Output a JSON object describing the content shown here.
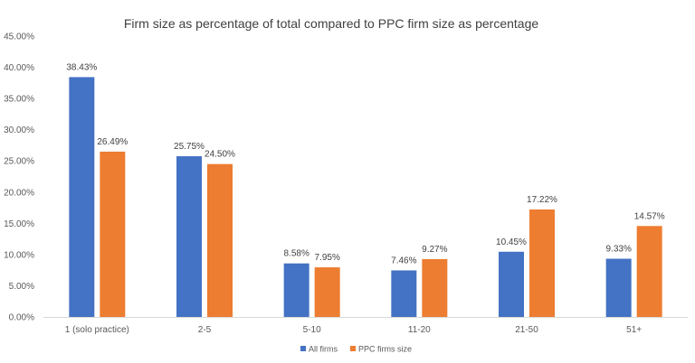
{
  "chart_data": {
    "type": "bar",
    "title": "Firm size as percentage of total compared to PPC firm size as percentage",
    "xlabel": "",
    "ylabel": "",
    "categories": [
      "1 (solo practice)",
      "2-5",
      "5-10",
      "11-20",
      "21-50",
      "51+"
    ],
    "series": [
      {
        "name": "All firms",
        "color": "#4472C4",
        "values": [
          38.43,
          25.75,
          8.58,
          7.46,
          10.45,
          9.33
        ],
        "labels": [
          "38.43%",
          "25.75%",
          "8.58%",
          "7.46%",
          "10.45%",
          "9.33%"
        ]
      },
      {
        "name": "PPC firms size",
        "color": "#ED7D31",
        "values": [
          26.49,
          24.5,
          7.95,
          9.27,
          17.22,
          14.57
        ],
        "labels": [
          "26.49%",
          "24.50%",
          "7.95%",
          "9.27%",
          "17.22%",
          "14.57%"
        ]
      }
    ],
    "ylim": [
      0,
      45
    ],
    "yticks": [
      0,
      5,
      10,
      15,
      20,
      25,
      30,
      35,
      40,
      45
    ],
    "ytick_labels": [
      "0.00%",
      "5.00%",
      "10.00%",
      "15.00%",
      "20.00%",
      "25.00%",
      "30.00%",
      "35.00%",
      "40.00%",
      "45.00%"
    ],
    "grid": false,
    "legend": "bottom-center"
  }
}
